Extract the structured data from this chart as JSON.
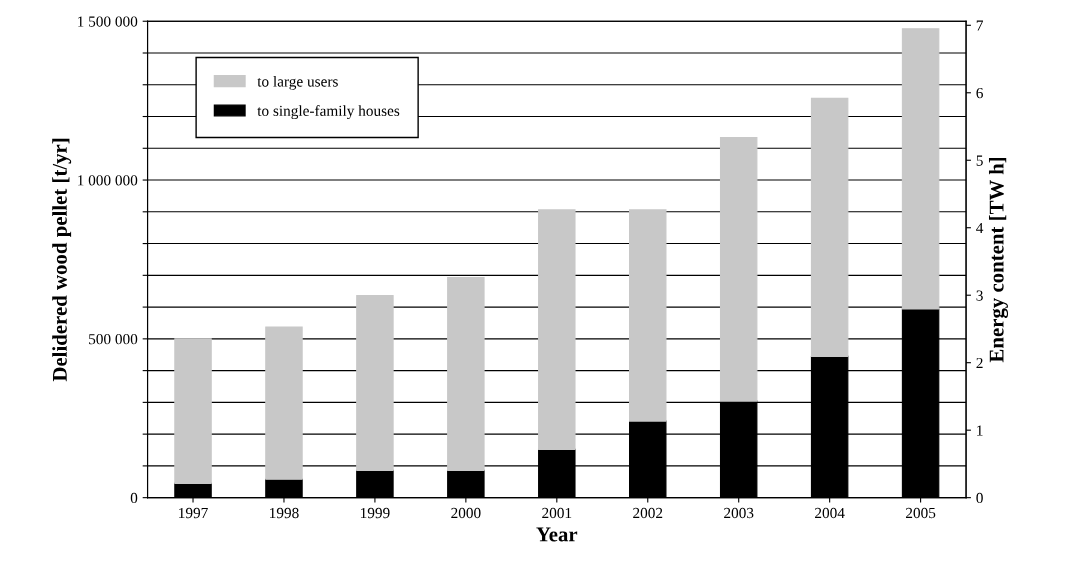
{
  "chart_data": {
    "type": "bar",
    "stacked": true,
    "xlabel": "Year",
    "ylabel": "Delidered wood pellet [t/yr]",
    "y2label": "Energy content [TW h]",
    "categories": [
      "1997",
      "1998",
      "1999",
      "2000",
      "2001",
      "2002",
      "2003",
      "2004",
      "2005"
    ],
    "series": [
      {
        "name": "to single-family houses",
        "color": "#000000",
        "values": [
          45000,
          58000,
          86000,
          86000,
          152000,
          241000,
          304000,
          445000,
          594000
        ]
      },
      {
        "name": "to large users",
        "color": "#c8c8c8",
        "values": [
          455000,
          479000,
          550000,
          607000,
          754000,
          665000,
          830000,
          812000,
          882000
        ]
      }
    ],
    "ylim": [
      0,
      1500000
    ],
    "yticks": [
      {
        "value": 0,
        "label": "0"
      },
      {
        "value": 100000,
        "label": null
      },
      {
        "value": 200000,
        "label": null
      },
      {
        "value": 300000,
        "label": null
      },
      {
        "value": 400000,
        "label": null
      },
      {
        "value": 500000,
        "label": "500 000"
      },
      {
        "value": 600000,
        "label": null
      },
      {
        "value": 700000,
        "label": null
      },
      {
        "value": 800000,
        "label": null
      },
      {
        "value": 900000,
        "label": null
      },
      {
        "value": 1000000,
        "label": "1 000 000"
      },
      {
        "value": 1100000,
        "label": null
      },
      {
        "value": 1200000,
        "label": null
      },
      {
        "value": 1300000,
        "label": null
      },
      {
        "value": 1400000,
        "label": null
      },
      {
        "value": 1500000,
        "label": "1 500 000"
      }
    ],
    "y2lim": [
      0,
      7.06
    ],
    "y2ticks": [
      0,
      1,
      2,
      3,
      4,
      5,
      6,
      7
    ],
    "grid": "y",
    "legend": "top left"
  }
}
